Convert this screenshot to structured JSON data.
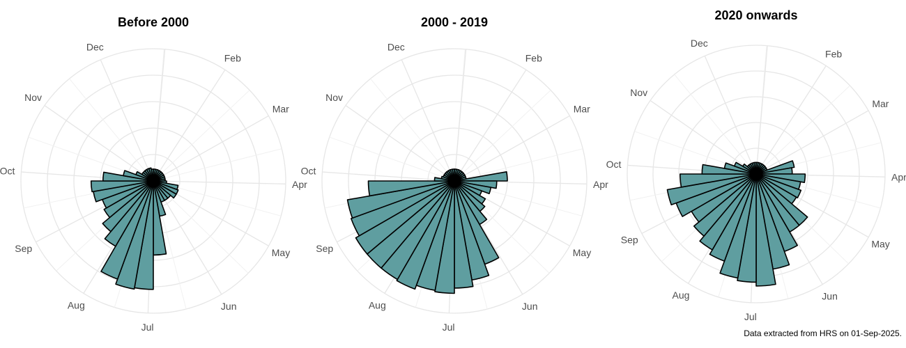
{
  "caption": "Data extracted from HRS on 01-Sep-2025.",
  "colors": {
    "fill": "#5f9ea0",
    "stroke": "#000000",
    "grid": "#e6e6e6",
    "label": "#4d4d4d"
  },
  "chart_data": [
    {
      "type": "polar_bar",
      "title": "Before 2000",
      "month_labels": [
        "Dec",
        "Feb",
        "Mar",
        "Apr",
        "May",
        "Jun",
        "Jul",
        "Aug",
        "Sep",
        "Oct",
        "Nov"
      ],
      "month_label_angles_deg": [
        -23.5,
        32.8,
        60.5,
        91.3,
        119.4,
        149.0,
        182.3,
        211.8,
        242.5,
        273.9,
        304.8
      ],
      "grid": true,
      "max_value": 100,
      "bins_deg_start": 90,
      "bins_deg_step": 10,
      "values": [
        10,
        19,
        20,
        20,
        17,
        17,
        17,
        27,
        56,
        82,
        83,
        79,
        57,
        50,
        43,
        41,
        46,
        47,
        38,
        23,
        14,
        10,
        10,
        10,
        10,
        10,
        9,
        9,
        9,
        9,
        9,
        9,
        9,
        9,
        9,
        9
      ]
    },
    {
      "type": "polar_bar",
      "title": "2000 - 2019",
      "month_labels": [
        "Dec",
        "Feb",
        "Mar",
        "Apr",
        "May",
        "Jun",
        "Jul",
        "Aug",
        "Sep",
        "Oct",
        "Nov"
      ],
      "month_label_angles_deg": [
        -23.5,
        32.8,
        60.5,
        91.3,
        119.4,
        149.0,
        182.3,
        211.8,
        242.5,
        273.9,
        304.8
      ],
      "grid": true,
      "max_value": 100,
      "bins_deg_start": 80,
      "bins_deg_step": 10,
      "values": [
        40,
        32,
        28,
        22,
        27,
        30,
        38,
        67,
        76,
        81,
        85,
        84,
        87,
        86,
        86,
        86,
        83,
        82,
        65,
        15,
        10,
        9,
        9,
        9,
        9,
        9,
        9,
        9,
        9,
        9,
        9,
        9,
        9,
        9,
        9,
        9
      ]
    },
    {
      "type": "polar_bar",
      "title": "2020 onwards",
      "month_labels": [
        "Dec",
        "Feb",
        "Mar",
        "Apr",
        "May",
        "Jun",
        "Jul",
        "Aug",
        "Sep",
        "Oct",
        "Nov"
      ],
      "month_label_angles_deg": [
        -23.5,
        32.8,
        60.5,
        91.3,
        119.4,
        149.0,
        182.3,
        211.8,
        242.5,
        273.9,
        304.8
      ],
      "grid": true,
      "max_value": 100,
      "bins_deg_start": 70,
      "bins_deg_step": 10,
      "values": [
        30,
        28,
        38,
        35,
        37,
        36,
        52,
        52,
        64,
        75,
        87,
        84,
        82,
        72,
        68,
        63,
        58,
        66,
        70,
        59,
        42,
        25,
        18,
        12,
        9,
        9,
        9,
        9,
        9,
        9,
        9,
        9,
        9,
        9,
        9,
        9
      ]
    }
  ]
}
